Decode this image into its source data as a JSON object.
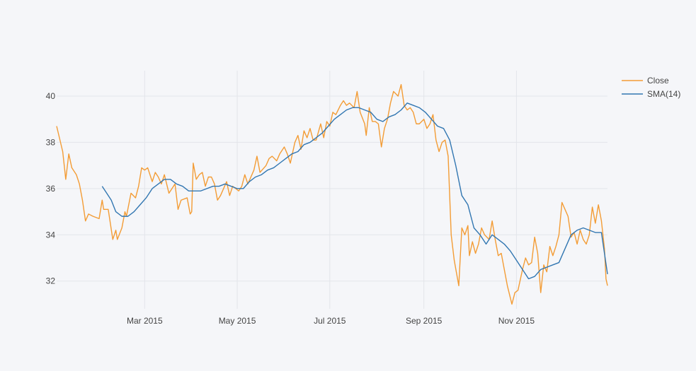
{
  "chart_data": {
    "type": "line",
    "title": "",
    "xlabel": "",
    "ylabel": "",
    "x_range": [
      "2015-01-02",
      "2015-12-31"
    ],
    "y_range": [
      30.8,
      41.1
    ],
    "x_ticks": [
      {
        "date": "2015-03-01",
        "label": "Mar 2015"
      },
      {
        "date": "2015-05-01",
        "label": "May 2015"
      },
      {
        "date": "2015-07-01",
        "label": "Jul 2015"
      },
      {
        "date": "2015-09-01",
        "label": "Sep 2015"
      },
      {
        "date": "2015-11-01",
        "label": "Nov 2015"
      }
    ],
    "y_ticks": [
      32,
      34,
      36,
      38,
      40
    ],
    "grid": true,
    "legend_position": "top-right",
    "series": [
      {
        "name": "Close",
        "color": "#f39c35",
        "points": [
          [
            "2015-01-02",
            38.7
          ],
          [
            "2015-01-06",
            37.6
          ],
          [
            "2015-01-08",
            36.4
          ],
          [
            "2015-01-10",
            37.5
          ],
          [
            "2015-01-12",
            36.9
          ],
          [
            "2015-01-15",
            36.6
          ],
          [
            "2015-01-17",
            36.2
          ],
          [
            "2015-01-19",
            35.5
          ],
          [
            "2015-01-21",
            34.6
          ],
          [
            "2015-01-23",
            34.9
          ],
          [
            "2015-01-26",
            34.8
          ],
          [
            "2015-01-30",
            34.7
          ],
          [
            "2015-02-01",
            35.5
          ],
          [
            "2015-02-02",
            35.1
          ],
          [
            "2015-02-05",
            35.1
          ],
          [
            "2015-02-08",
            33.8
          ],
          [
            "2015-02-10",
            34.2
          ],
          [
            "2015-02-11",
            33.8
          ],
          [
            "2015-02-14",
            34.3
          ],
          [
            "2015-02-16",
            35.0
          ],
          [
            "2015-02-17",
            34.8
          ],
          [
            "2015-02-20",
            35.8
          ],
          [
            "2015-02-23",
            35.6
          ],
          [
            "2015-02-25",
            36.1
          ],
          [
            "2015-02-27",
            36.9
          ],
          [
            "2015-03-01",
            36.8
          ],
          [
            "2015-03-03",
            36.9
          ],
          [
            "2015-03-06",
            36.3
          ],
          [
            "2015-03-08",
            36.7
          ],
          [
            "2015-03-10",
            36.5
          ],
          [
            "2015-03-12",
            36.2
          ],
          [
            "2015-03-14",
            36.6
          ],
          [
            "2015-03-17",
            35.8
          ],
          [
            "2015-03-19",
            36.0
          ],
          [
            "2015-03-21",
            36.2
          ],
          [
            "2015-03-23",
            35.1
          ],
          [
            "2015-03-25",
            35.5
          ],
          [
            "2015-03-29",
            35.6
          ],
          [
            "2015-03-31",
            34.9
          ],
          [
            "2015-04-01",
            35.0
          ],
          [
            "2015-04-02",
            37.1
          ],
          [
            "2015-04-04",
            36.4
          ],
          [
            "2015-04-06",
            36.6
          ],
          [
            "2015-04-08",
            36.7
          ],
          [
            "2015-04-10",
            36.1
          ],
          [
            "2015-04-12",
            36.5
          ],
          [
            "2015-04-14",
            36.5
          ],
          [
            "2015-04-16",
            36.2
          ],
          [
            "2015-04-18",
            35.5
          ],
          [
            "2015-04-20",
            35.7
          ],
          [
            "2015-04-24",
            36.3
          ],
          [
            "2015-04-26",
            35.7
          ],
          [
            "2015-04-28",
            36.1
          ],
          [
            "2015-05-02",
            35.9
          ],
          [
            "2015-05-04",
            36.1
          ],
          [
            "2015-05-06",
            36.6
          ],
          [
            "2015-05-08",
            36.2
          ],
          [
            "2015-05-12",
            36.8
          ],
          [
            "2015-05-14",
            37.4
          ],
          [
            "2015-05-16",
            36.7
          ],
          [
            "2015-05-20",
            37.0
          ],
          [
            "2015-05-22",
            37.3
          ],
          [
            "2015-05-24",
            37.4
          ],
          [
            "2015-05-27",
            37.2
          ],
          [
            "2015-05-29",
            37.5
          ],
          [
            "2015-06-01",
            37.8
          ],
          [
            "2015-06-03",
            37.5
          ],
          [
            "2015-06-05",
            37.1
          ],
          [
            "2015-06-08",
            38.0
          ],
          [
            "2015-06-10",
            38.3
          ],
          [
            "2015-06-12",
            37.7
          ],
          [
            "2015-06-14",
            38.5
          ],
          [
            "2015-06-16",
            38.2
          ],
          [
            "2015-06-18",
            38.6
          ],
          [
            "2015-06-20",
            38.1
          ],
          [
            "2015-06-22",
            38.1
          ],
          [
            "2015-06-25",
            38.8
          ],
          [
            "2015-06-27",
            38.2
          ],
          [
            "2015-06-29",
            38.9
          ],
          [
            "2015-07-01",
            38.7
          ],
          [
            "2015-07-03",
            39.3
          ],
          [
            "2015-07-05",
            39.2
          ],
          [
            "2015-07-08",
            39.6
          ],
          [
            "2015-07-10",
            39.8
          ],
          [
            "2015-07-12",
            39.6
          ],
          [
            "2015-07-14",
            39.7
          ],
          [
            "2015-07-17",
            39.5
          ],
          [
            "2015-07-19",
            40.2
          ],
          [
            "2015-07-21",
            39.3
          ],
          [
            "2015-07-24",
            38.8
          ],
          [
            "2015-07-25",
            38.3
          ],
          [
            "2015-07-27",
            39.5
          ],
          [
            "2015-07-29",
            38.9
          ],
          [
            "2015-07-31",
            38.9
          ],
          [
            "2015-08-02",
            38.8
          ],
          [
            "2015-08-04",
            37.8
          ],
          [
            "2015-08-06",
            38.6
          ],
          [
            "2015-08-08",
            39.0
          ],
          [
            "2015-08-10",
            39.7
          ],
          [
            "2015-08-12",
            40.2
          ],
          [
            "2015-08-15",
            40.0
          ],
          [
            "2015-08-17",
            40.5
          ],
          [
            "2015-08-19",
            39.6
          ],
          [
            "2015-08-21",
            39.4
          ],
          [
            "2015-08-23",
            39.5
          ],
          [
            "2015-08-25",
            39.3
          ],
          [
            "2015-08-27",
            38.8
          ],
          [
            "2015-08-29",
            38.8
          ],
          [
            "2015-09-01",
            39.0
          ],
          [
            "2015-09-03",
            38.6
          ],
          [
            "2015-09-05",
            38.8
          ],
          [
            "2015-09-07",
            39.2
          ],
          [
            "2015-09-09",
            38.1
          ],
          [
            "2015-09-11",
            37.6
          ],
          [
            "2015-09-13",
            38.0
          ],
          [
            "2015-09-15",
            38.1
          ],
          [
            "2015-09-17",
            37.4
          ],
          [
            "2015-09-19",
            34.0
          ],
          [
            "2015-09-21",
            32.9
          ],
          [
            "2015-09-24",
            31.8
          ],
          [
            "2015-09-26",
            34.3
          ],
          [
            "2015-09-28",
            34.0
          ],
          [
            "2015-09-30",
            34.4
          ],
          [
            "2015-10-01",
            33.1
          ],
          [
            "2015-10-03",
            33.7
          ],
          [
            "2015-10-05",
            33.2
          ],
          [
            "2015-10-07",
            33.6
          ],
          [
            "2015-10-09",
            34.3
          ],
          [
            "2015-10-11",
            34.0
          ],
          [
            "2015-10-14",
            33.8
          ],
          [
            "2015-10-16",
            34.6
          ],
          [
            "2015-10-18",
            33.8
          ],
          [
            "2015-10-20",
            33.1
          ],
          [
            "2015-10-22",
            33.2
          ],
          [
            "2015-10-24",
            32.5
          ],
          [
            "2015-10-26",
            31.8
          ],
          [
            "2015-10-29",
            31.0
          ],
          [
            "2015-10-31",
            31.5
          ],
          [
            "2015-11-02",
            31.6
          ],
          [
            "2015-11-05",
            32.5
          ],
          [
            "2015-11-07",
            33.0
          ],
          [
            "2015-11-09",
            32.7
          ],
          [
            "2015-11-11",
            32.8
          ],
          [
            "2015-11-13",
            33.9
          ],
          [
            "2015-11-15",
            33.2
          ],
          [
            "2015-11-17",
            31.5
          ],
          [
            "2015-11-19",
            32.7
          ],
          [
            "2015-11-21",
            32.4
          ],
          [
            "2015-11-23",
            33.5
          ],
          [
            "2015-11-25",
            33.1
          ],
          [
            "2015-11-27",
            33.5
          ],
          [
            "2015-11-29",
            34.0
          ],
          [
            "2015-12-01",
            35.4
          ],
          [
            "2015-12-03",
            35.1
          ],
          [
            "2015-12-05",
            34.8
          ],
          [
            "2015-12-07",
            33.9
          ],
          [
            "2015-12-09",
            34.1
          ],
          [
            "2015-12-11",
            33.6
          ],
          [
            "2015-12-13",
            34.2
          ],
          [
            "2015-12-15",
            33.8
          ],
          [
            "2015-12-17",
            33.6
          ],
          [
            "2015-12-19",
            34.0
          ],
          [
            "2015-12-21",
            35.2
          ],
          [
            "2015-12-23",
            34.5
          ],
          [
            "2015-12-25",
            35.3
          ],
          [
            "2015-12-27",
            34.6
          ],
          [
            "2015-12-29",
            33.4
          ],
          [
            "2015-12-30",
            32.1
          ],
          [
            "2015-12-31",
            31.8
          ]
        ]
      },
      {
        "name": "SMA(14)",
        "color": "#3176b1",
        "points": [
          [
            "2015-02-01",
            36.1
          ],
          [
            "2015-02-04",
            35.8
          ],
          [
            "2015-02-07",
            35.5
          ],
          [
            "2015-02-10",
            35.0
          ],
          [
            "2015-02-14",
            34.8
          ],
          [
            "2015-02-18",
            34.8
          ],
          [
            "2015-02-22",
            35.0
          ],
          [
            "2015-02-26",
            35.3
          ],
          [
            "2015-03-02",
            35.6
          ],
          [
            "2015-03-06",
            36.0
          ],
          [
            "2015-03-10",
            36.2
          ],
          [
            "2015-03-14",
            36.4
          ],
          [
            "2015-03-18",
            36.4
          ],
          [
            "2015-03-22",
            36.2
          ],
          [
            "2015-03-26",
            36.1
          ],
          [
            "2015-03-30",
            35.9
          ],
          [
            "2015-04-03",
            35.9
          ],
          [
            "2015-04-07",
            35.9
          ],
          [
            "2015-04-11",
            36.0
          ],
          [
            "2015-04-15",
            36.1
          ],
          [
            "2015-04-19",
            36.1
          ],
          [
            "2015-04-23",
            36.2
          ],
          [
            "2015-04-27",
            36.1
          ],
          [
            "2015-05-01",
            36.0
          ],
          [
            "2015-05-05",
            36.0
          ],
          [
            "2015-05-09",
            36.3
          ],
          [
            "2015-05-13",
            36.5
          ],
          [
            "2015-05-17",
            36.6
          ],
          [
            "2015-05-21",
            36.8
          ],
          [
            "2015-05-25",
            36.9
          ],
          [
            "2015-05-29",
            37.1
          ],
          [
            "2015-06-02",
            37.3
          ],
          [
            "2015-06-06",
            37.5
          ],
          [
            "2015-06-10",
            37.6
          ],
          [
            "2015-06-14",
            37.9
          ],
          [
            "2015-06-18",
            38.0
          ],
          [
            "2015-06-22",
            38.2
          ],
          [
            "2015-06-26",
            38.4
          ],
          [
            "2015-06-30",
            38.7
          ],
          [
            "2015-07-04",
            39.0
          ],
          [
            "2015-07-08",
            39.2
          ],
          [
            "2015-07-12",
            39.4
          ],
          [
            "2015-07-16",
            39.5
          ],
          [
            "2015-07-20",
            39.5
          ],
          [
            "2015-07-24",
            39.4
          ],
          [
            "2015-07-28",
            39.3
          ],
          [
            "2015-08-01",
            39.0
          ],
          [
            "2015-08-05",
            38.9
          ],
          [
            "2015-08-09",
            39.1
          ],
          [
            "2015-08-13",
            39.2
          ],
          [
            "2015-08-17",
            39.4
          ],
          [
            "2015-08-21",
            39.7
          ],
          [
            "2015-08-25",
            39.6
          ],
          [
            "2015-08-29",
            39.5
          ],
          [
            "2015-09-02",
            39.3
          ],
          [
            "2015-09-06",
            39.0
          ],
          [
            "2015-09-10",
            38.7
          ],
          [
            "2015-09-14",
            38.6
          ],
          [
            "2015-09-18",
            38.1
          ],
          [
            "2015-09-22",
            37.0
          ],
          [
            "2015-09-26",
            35.7
          ],
          [
            "2015-09-30",
            35.3
          ],
          [
            "2015-10-04",
            34.3
          ],
          [
            "2015-10-08",
            34.0
          ],
          [
            "2015-10-12",
            33.6
          ],
          [
            "2015-10-16",
            34.0
          ],
          [
            "2015-10-20",
            33.8
          ],
          [
            "2015-10-24",
            33.6
          ],
          [
            "2015-10-28",
            33.3
          ],
          [
            "2015-11-01",
            32.9
          ],
          [
            "2015-11-05",
            32.5
          ],
          [
            "2015-11-09",
            32.1
          ],
          [
            "2015-11-13",
            32.2
          ],
          [
            "2015-11-17",
            32.5
          ],
          [
            "2015-11-21",
            32.6
          ],
          [
            "2015-11-25",
            32.7
          ],
          [
            "2015-11-29",
            32.8
          ],
          [
            "2015-12-03",
            33.4
          ],
          [
            "2015-12-07",
            34.0
          ],
          [
            "2015-12-11",
            34.2
          ],
          [
            "2015-12-15",
            34.3
          ],
          [
            "2015-12-19",
            34.2
          ],
          [
            "2015-12-23",
            34.1
          ],
          [
            "2015-12-27",
            34.1
          ],
          [
            "2015-12-31",
            32.3
          ]
        ]
      }
    ]
  }
}
